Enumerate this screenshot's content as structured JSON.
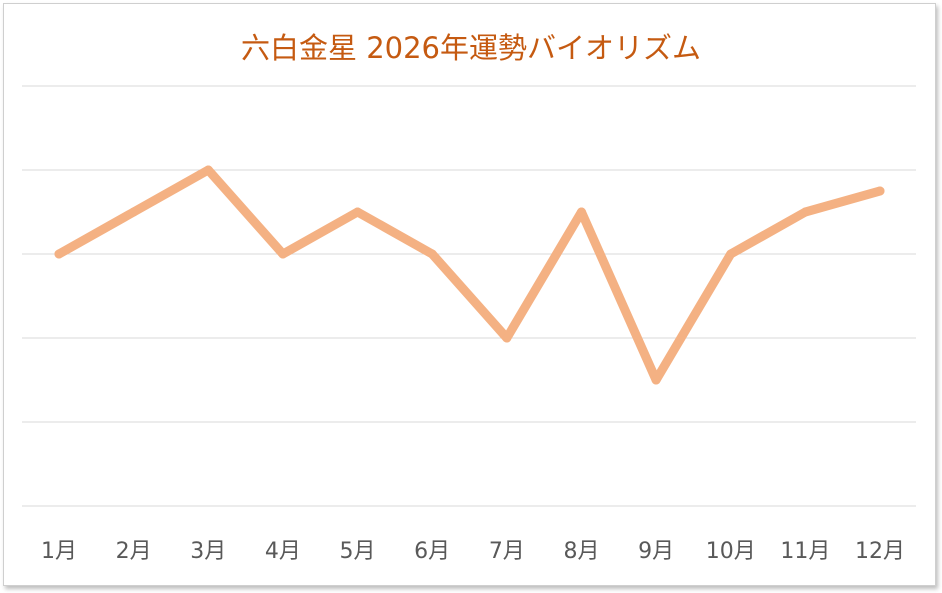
{
  "chart_data": {
    "type": "line",
    "title": "六白金星  2026年運勢バイオリズム",
    "xlabel": "",
    "ylabel": "",
    "categories": [
      "1月",
      "2月",
      "3月",
      "4月",
      "5月",
      "6月",
      "7月",
      "8月",
      "9月",
      "10月",
      "11月",
      "12月"
    ],
    "series": [
      {
        "values": [
          3,
          3.5,
          4,
          3,
          3.5,
          3,
          2,
          3.5,
          1.5,
          3,
          3.5,
          3.75
        ]
      }
    ],
    "ylim": [
      0,
      5
    ],
    "grid": true,
    "legend": "none",
    "colors": {
      "title": "#C55A11",
      "line": "#F4B183",
      "grid": "#D9D9D9",
      "tick_label": "#595959"
    }
  }
}
